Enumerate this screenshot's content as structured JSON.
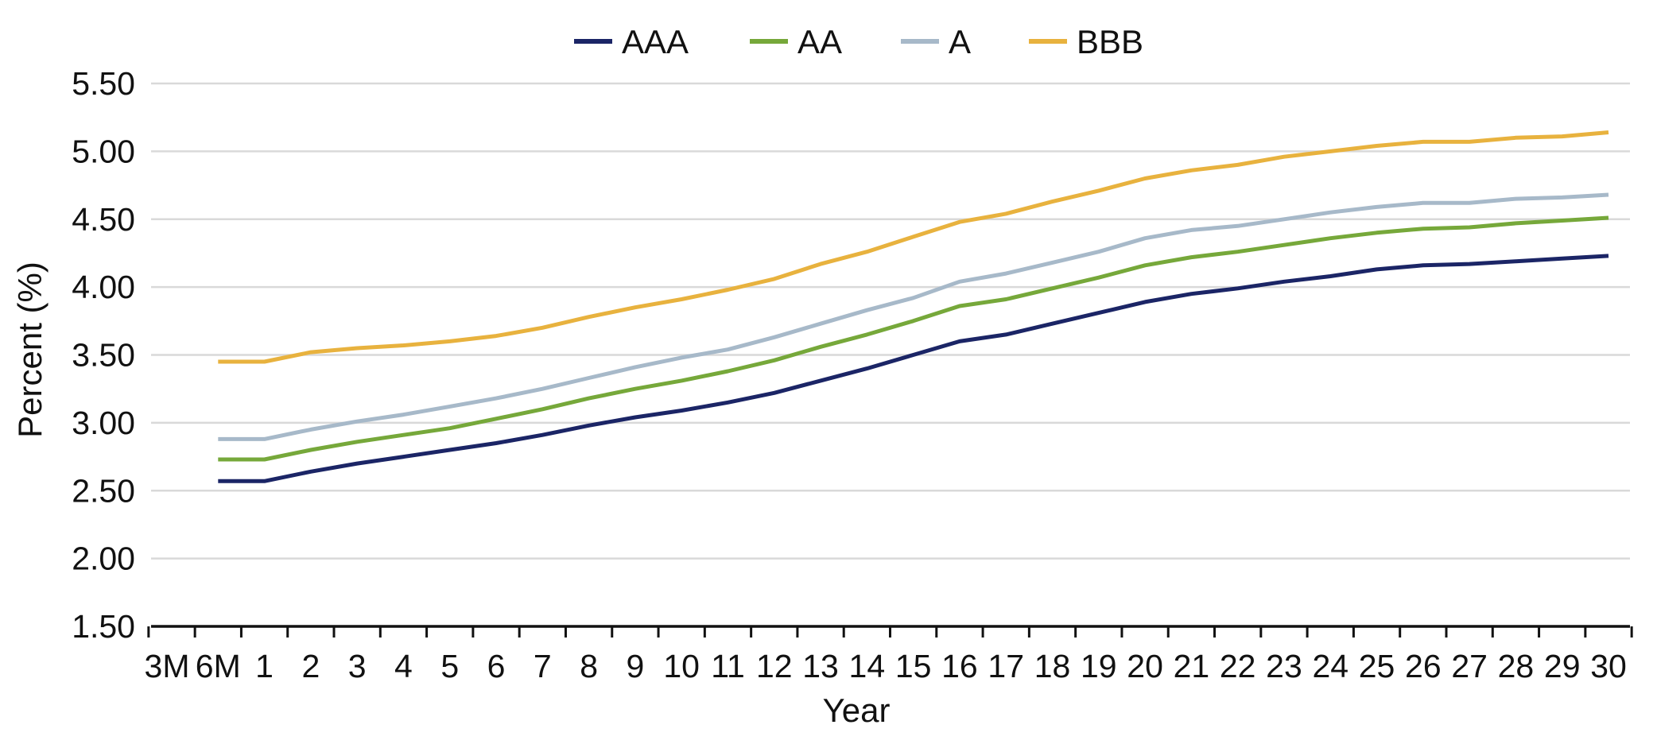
{
  "chart_data": {
    "type": "line",
    "title": "",
    "xlabel": "Year",
    "ylabel": "Percent (%)",
    "ylim": [
      1.5,
      5.5
    ],
    "y_ticks": [
      "1.50",
      "2.00",
      "2.50",
      "3.00",
      "3.50",
      "4.00",
      "4.50",
      "5.00",
      "5.50"
    ],
    "categories": [
      "3M",
      "6M",
      "1",
      "2",
      "3",
      "4",
      "5",
      "6",
      "7",
      "8",
      "9",
      "10",
      "11",
      "12",
      "13",
      "14",
      "15",
      "16",
      "17",
      "18",
      "19",
      "20",
      "21",
      "22",
      "23",
      "24",
      "25",
      "26",
      "27",
      "28",
      "29",
      "30"
    ],
    "grid": true,
    "legend_position": "top-center",
    "series": [
      {
        "name": "AAA",
        "color": "#1b2566",
        "values": [
          2.57,
          2.57,
          2.57,
          2.64,
          2.7,
          2.75,
          2.8,
          2.85,
          2.91,
          2.98,
          3.04,
          3.09,
          3.15,
          3.22,
          3.31,
          3.4,
          3.5,
          3.6,
          3.65,
          3.73,
          3.81,
          3.89,
          3.95,
          3.99,
          4.04,
          4.08,
          4.13,
          4.16,
          4.17,
          4.19,
          4.21,
          4.23
        ]
      },
      {
        "name": "AA",
        "color": "#76a83a",
        "values": [
          2.73,
          2.73,
          2.73,
          2.8,
          2.86,
          2.91,
          2.96,
          3.03,
          3.1,
          3.18,
          3.25,
          3.31,
          3.38,
          3.46,
          3.56,
          3.65,
          3.75,
          3.86,
          3.91,
          3.99,
          4.07,
          4.16,
          4.22,
          4.26,
          4.31,
          4.36,
          4.4,
          4.43,
          4.44,
          4.47,
          4.49,
          4.51
        ]
      },
      {
        "name": "A",
        "color": "#a7b9c9",
        "values": [
          2.88,
          2.88,
          2.88,
          2.95,
          3.01,
          3.06,
          3.12,
          3.18,
          3.25,
          3.33,
          3.41,
          3.48,
          3.54,
          3.63,
          3.73,
          3.83,
          3.92,
          4.04,
          4.1,
          4.18,
          4.26,
          4.36,
          4.42,
          4.45,
          4.5,
          4.55,
          4.59,
          4.62,
          4.62,
          4.65,
          4.66,
          4.68
        ]
      },
      {
        "name": "BBB",
        "color": "#e8b23e",
        "values": [
          3.45,
          3.45,
          3.45,
          3.52,
          3.55,
          3.57,
          3.6,
          3.64,
          3.7,
          3.78,
          3.85,
          3.91,
          3.98,
          4.06,
          4.17,
          4.26,
          4.37,
          4.48,
          4.54,
          4.63,
          4.71,
          4.8,
          4.86,
          4.9,
          4.96,
          5.0,
          5.04,
          5.07,
          5.07,
          5.1,
          5.11,
          5.14
        ]
      }
    ]
  }
}
